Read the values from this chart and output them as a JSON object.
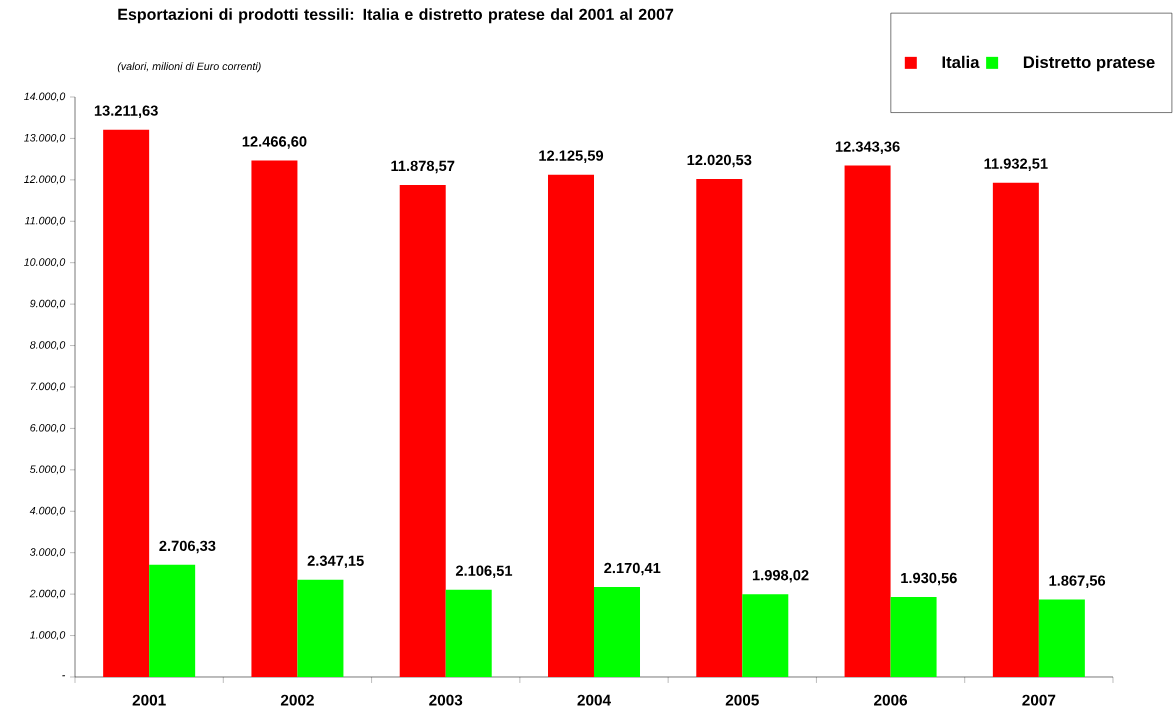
{
  "chart_data": {
    "type": "bar",
    "title": "Esportazioni di prodotti tessili: Italia e distretto pratese dal 2001 al 2007",
    "subtitle": "(valori, milioni di Euro correnti)",
    "categories": [
      "2001",
      "2002",
      "2003",
      "2004",
      "2005",
      "2006",
      "2007"
    ],
    "series": [
      {
        "name": "Italia",
        "color": "#ff0000",
        "values": [
          13211.63,
          12466.6,
          11878.57,
          12125.59,
          12020.53,
          12343.36,
          11932.51
        ],
        "value_labels": [
          "13.211,63",
          "12.466,60",
          "11.878,57",
          "12.125,59",
          "12.020,53",
          "12.343,36",
          "11.932,51"
        ]
      },
      {
        "name": "Distretto pratese",
        "color": "#00ff00",
        "values": [
          2706.33,
          2347.15,
          2106.51,
          2170.41,
          1998.02,
          1930.56,
          1867.56
        ],
        "value_labels": [
          "2.706,33",
          "2.347,15",
          "2.106,51",
          "2.170,41",
          "1.998,02",
          "1.930,56",
          "1.867,56"
        ]
      }
    ],
    "ylim": [
      0,
      14000
    ],
    "yticks": [
      {
        "value": 0,
        "label": "-"
      },
      {
        "value": 1000,
        "label": "1.000,0"
      },
      {
        "value": 2000,
        "label": "2.000,0"
      },
      {
        "value": 3000,
        "label": "3.000,0"
      },
      {
        "value": 4000,
        "label": "4.000,0"
      },
      {
        "value": 5000,
        "label": "5.000,0"
      },
      {
        "value": 6000,
        "label": "6.000,0"
      },
      {
        "value": 7000,
        "label": "7.000,0"
      },
      {
        "value": 8000,
        "label": "8.000,0"
      },
      {
        "value": 9000,
        "label": "9.000,0"
      },
      {
        "value": 10000,
        "label": "10.000,0"
      },
      {
        "value": 11000,
        "label": "11.000,0"
      },
      {
        "value": 12000,
        "label": "12.000,0"
      },
      {
        "value": 13000,
        "label": "13.000,0"
      },
      {
        "value": 14000,
        "label": "14.000,0"
      }
    ],
    "grid": false,
    "legend": "top right"
  }
}
